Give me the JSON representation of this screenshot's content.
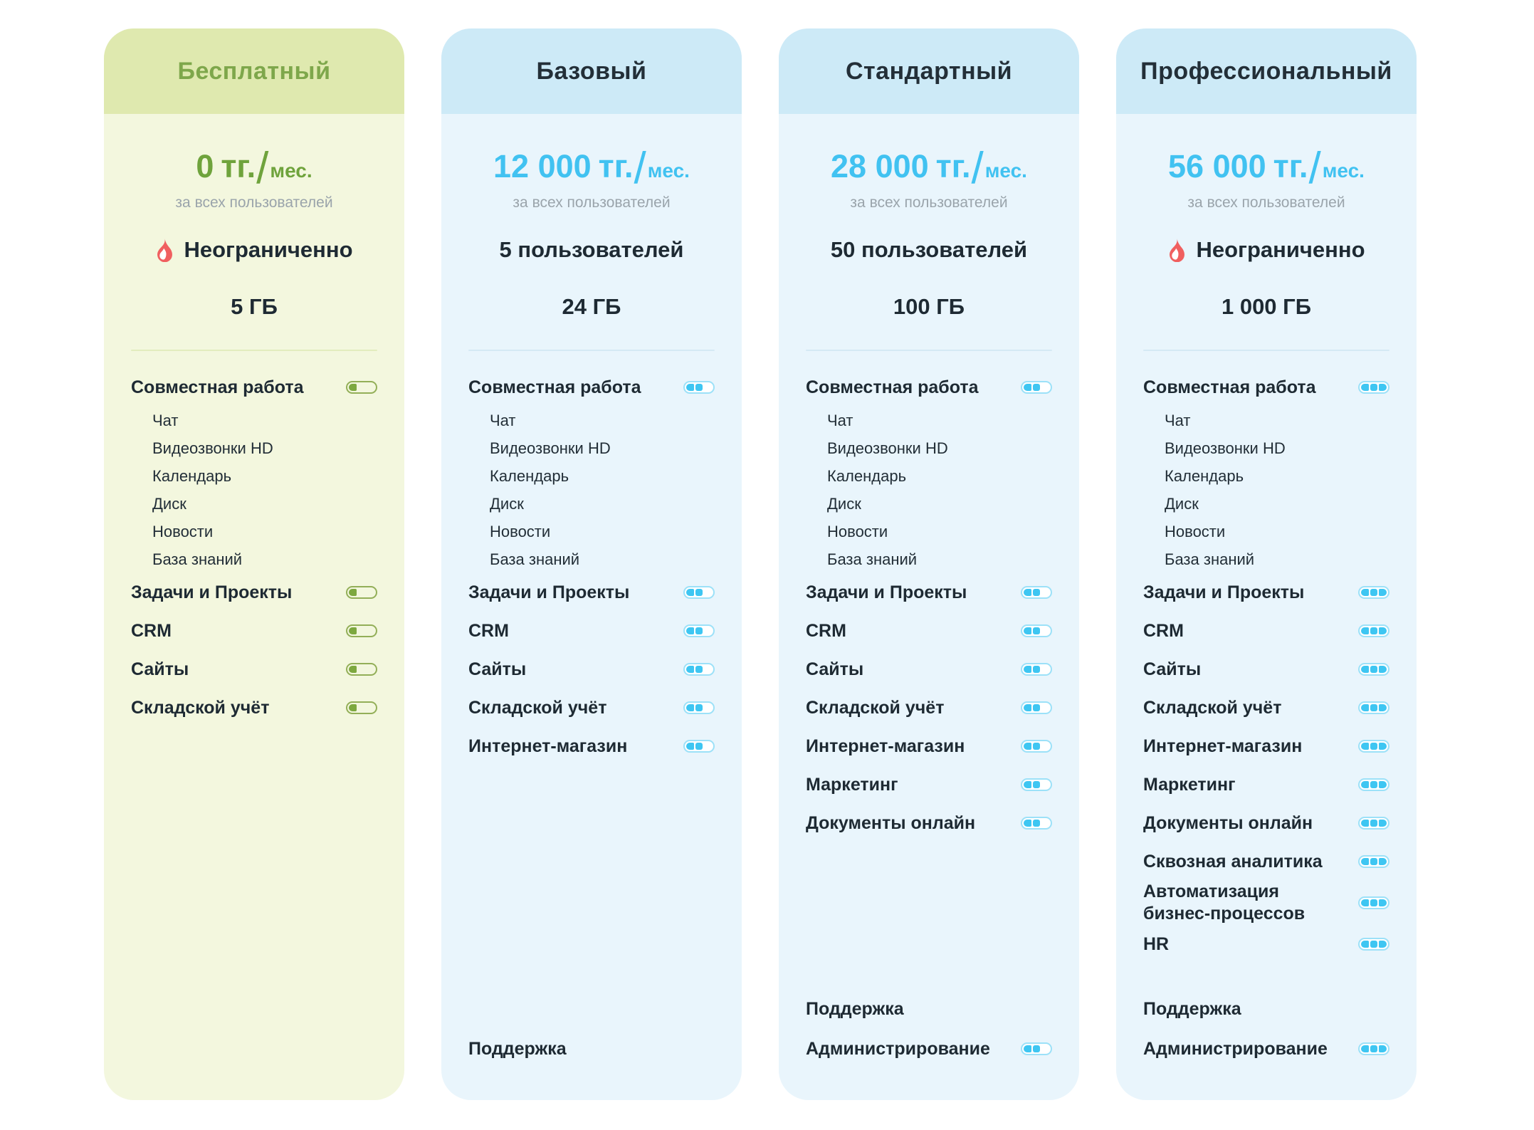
{
  "shared": {
    "currency": "тг.",
    "period": "мес.",
    "price_note": "за всех пользователей",
    "fire_color": "#f05f5f",
    "text_dark": "#1e2a33",
    "note_gray": "#9aa4ab"
  },
  "themes": {
    "green": {
      "header": "#dfe9af",
      "body": "#f3f7de",
      "title": "#7ea74b",
      "accent": "#6fa33c",
      "divider": "#e2ecbe",
      "toggle_fill": "#7da83f",
      "toggle_border": "#93af58",
      "toggle_bg": "transparent"
    },
    "blue": {
      "header": "#cdeaf7",
      "body": "#e9f5fc",
      "title": "#232f38",
      "accent": "#41c2f1",
      "divider": "#d5e9f4",
      "toggle_fill": "#3ec6f2",
      "toggle_border": "#9ce1f8",
      "toggle_bg": "#ffffff"
    }
  },
  "plans": [
    {
      "id": "free",
      "theme": "green",
      "name": "Бесплатный",
      "price_amount": "0",
      "users": "Неограниченно",
      "users_fire": true,
      "storage": "5 ГБ",
      "toggle_level": 1,
      "features": [
        {
          "label": "Совместная работа",
          "toggle": true
        },
        {
          "label": "Чат",
          "sub": true
        },
        {
          "label": "Видеозвонки HD",
          "sub": true
        },
        {
          "label": "Календарь",
          "sub": true
        },
        {
          "label": "Диск",
          "sub": true
        },
        {
          "label": "Новости",
          "sub": true
        },
        {
          "label": "База знаний",
          "sub": true
        },
        {
          "label": "Задачи и Проекты",
          "toggle": true
        },
        {
          "label": "CRM",
          "toggle": true
        },
        {
          "label": "Сайты",
          "toggle": true
        },
        {
          "label": "Складской учёт",
          "toggle": true
        }
      ],
      "footer": []
    },
    {
      "id": "basic",
      "theme": "blue",
      "name": "Базовый",
      "price_amount": "12 000",
      "users": "5 пользователей",
      "users_fire": false,
      "storage": "24 ГБ",
      "toggle_level": 2,
      "features": [
        {
          "label": "Совместная работа",
          "toggle": true
        },
        {
          "label": "Чат",
          "sub": true
        },
        {
          "label": "Видеозвонки HD",
          "sub": true
        },
        {
          "label": "Календарь",
          "sub": true
        },
        {
          "label": "Диск",
          "sub": true
        },
        {
          "label": "Новости",
          "sub": true
        },
        {
          "label": "База знаний",
          "sub": true
        },
        {
          "label": "Задачи и Проекты",
          "toggle": true
        },
        {
          "label": "CRM",
          "toggle": true
        },
        {
          "label": "Сайты",
          "toggle": true
        },
        {
          "label": "Складской учёт",
          "toggle": true
        },
        {
          "label": "Интернет-магазин",
          "toggle": true
        }
      ],
      "footer": [
        {
          "label": "Поддержка",
          "toggle": false
        }
      ]
    },
    {
      "id": "standard",
      "theme": "blue",
      "name": "Стандартный",
      "price_amount": "28 000",
      "users": "50 пользователей",
      "users_fire": false,
      "storage": "100 ГБ",
      "toggle_level": 2,
      "features": [
        {
          "label": "Совместная работа",
          "toggle": true
        },
        {
          "label": "Чат",
          "sub": true
        },
        {
          "label": "Видеозвонки HD",
          "sub": true
        },
        {
          "label": "Календарь",
          "sub": true
        },
        {
          "label": "Диск",
          "sub": true
        },
        {
          "label": "Новости",
          "sub": true
        },
        {
          "label": "База знаний",
          "sub": true
        },
        {
          "label": "Задачи и Проекты",
          "toggle": true
        },
        {
          "label": "CRM",
          "toggle": true
        },
        {
          "label": "Сайты",
          "toggle": true
        },
        {
          "label": "Складской учёт",
          "toggle": true
        },
        {
          "label": "Интернет-магазин",
          "toggle": true
        },
        {
          "label": "Маркетинг",
          "toggle": true
        },
        {
          "label": "Документы онлайн",
          "toggle": true
        }
      ],
      "footer": [
        {
          "label": "Поддержка",
          "toggle": false
        },
        {
          "label": "Администрирование",
          "toggle": true
        }
      ]
    },
    {
      "id": "professional",
      "theme": "blue",
      "name": "Профессиональный",
      "price_amount": "56 000",
      "users": "Неограниченно",
      "users_fire": true,
      "storage": "1 000 ГБ",
      "toggle_level": 3,
      "features": [
        {
          "label": "Совместная работа",
          "toggle": true
        },
        {
          "label": "Чат",
          "sub": true
        },
        {
          "label": "Видеозвонки HD",
          "sub": true
        },
        {
          "label": "Календарь",
          "sub": true
        },
        {
          "label": "Диск",
          "sub": true
        },
        {
          "label": "Новости",
          "sub": true
        },
        {
          "label": "База знаний",
          "sub": true
        },
        {
          "label": "Задачи и Проекты",
          "toggle": true
        },
        {
          "label": "CRM",
          "toggle": true
        },
        {
          "label": "Сайты",
          "toggle": true
        },
        {
          "label": "Складской учёт",
          "toggle": true
        },
        {
          "label": "Интернет-магазин",
          "toggle": true
        },
        {
          "label": "Маркетинг",
          "toggle": true
        },
        {
          "label": "Документы онлайн",
          "toggle": true
        },
        {
          "label": "Сквозная аналитика",
          "toggle": true
        },
        {
          "label": "Автоматизация бизнес-процессов",
          "toggle": true
        },
        {
          "label": "HR",
          "toggle": true
        }
      ],
      "footer": [
        {
          "label": "Поддержка",
          "toggle": false
        },
        {
          "label": "Администрирование",
          "toggle": true
        }
      ]
    }
  ]
}
